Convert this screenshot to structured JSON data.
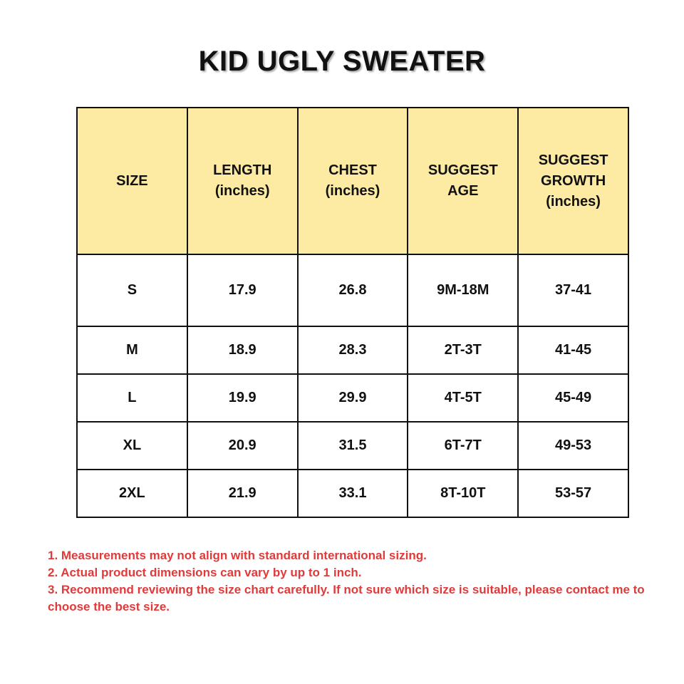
{
  "title": "KID UGLY SWEATER",
  "table": {
    "header": [
      [
        "SIZE"
      ],
      [
        "LENGTH",
        "(inches)"
      ],
      [
        "CHEST",
        "(inches)"
      ],
      [
        "SUGGEST",
        "AGE"
      ],
      [
        "SUGGEST",
        "GROWTH",
        "(inches)"
      ]
    ],
    "rows": [
      [
        "S",
        "17.9",
        "26.8",
        "9M-18M",
        "37-41"
      ],
      [
        "M",
        "18.9",
        "28.3",
        "2T-3T",
        "41-45"
      ],
      [
        "L",
        "19.9",
        "29.9",
        "4T-5T",
        "45-49"
      ],
      [
        "XL",
        "20.9",
        "31.5",
        "6T-7T",
        "49-53"
      ],
      [
        "2XL",
        "21.9",
        "33.1",
        "8T-10T",
        "53-57"
      ]
    ]
  },
  "notes": [
    "1. Measurements may not align with standard international sizing.",
    "2. Actual product dimensions can vary by up to 1 inch.",
    "3. Recommend reviewing the size chart carefully. If not sure which size is suitable, please contact me to choose the best size."
  ]
}
